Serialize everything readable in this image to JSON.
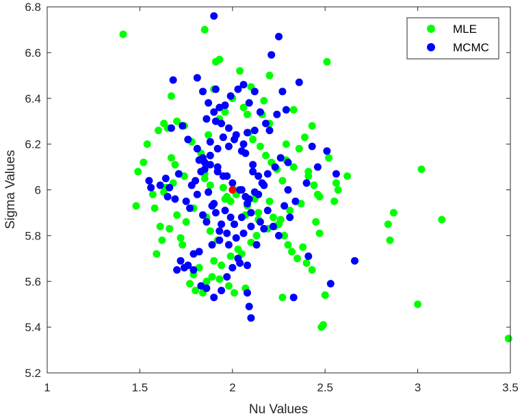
{
  "chart_data": {
    "type": "scatter",
    "xlabel": "Nu Values",
    "ylabel": "Sigma Values",
    "xlim": [
      1,
      3.5
    ],
    "ylim": [
      5.2,
      6.8
    ],
    "xticks": [
      1,
      1.5,
      2,
      2.5,
      3,
      3.5
    ],
    "xtick_labels": [
      "1",
      "1.5",
      "2",
      "2.5",
      "3",
      "3.5"
    ],
    "yticks": [
      5.2,
      5.4,
      5.6,
      5.8,
      6.0,
      6.2,
      6.4,
      6.6,
      6.8
    ],
    "ytick_labels": [
      "5.2",
      "5.4",
      "5.6",
      "5.8",
      "6",
      "6.2",
      "6.4",
      "6.6",
      "6.8"
    ],
    "grid": false,
    "legend_position": "top-right",
    "colors": {
      "mle": "#00ff00",
      "mcmc": "#0000ff",
      "true": "#ff0000"
    },
    "series": [
      {
        "name": "MLE",
        "color": "#00ff00",
        "x": [
          1.41,
          1.85,
          1.93,
          1.91,
          2.04,
          2.51,
          2.1,
          2.16,
          1.67,
          1.63,
          1.65,
          1.6,
          1.7,
          1.74,
          1.76,
          1.81,
          1.78,
          1.54,
          1.52,
          1.49,
          1.48,
          1.57,
          1.59,
          1.62,
          1.66,
          1.7,
          1.73,
          1.75,
          1.68,
          1.85,
          1.88,
          1.95,
          1.97,
          1.99,
          2.02,
          2.05,
          2.08,
          2.12,
          2.14,
          2.2,
          2.22,
          2.25,
          2.28,
          2.3,
          2.32,
          2.35,
          2.38,
          2.4,
          2.43,
          2.45,
          2.47,
          2.5,
          2.55,
          2.57,
          2.62,
          2.05,
          1.9,
          1.82,
          1.79,
          1.86,
          1.98,
          2.01,
          2.07,
          1.72,
          1.58,
          1.61,
          1.63,
          1.67,
          1.69,
          1.71,
          1.83,
          1.87,
          1.93,
          1.96,
          2.06,
          2.09,
          2.11,
          2.15,
          2.18,
          2.21,
          2.24,
          2.27,
          2.29,
          2.33,
          2.36,
          2.39,
          2.41,
          2.44,
          2.46,
          2.49,
          2.48,
          2.47,
          2.37,
          2.31,
          2.26,
          2.23,
          2.19,
          2.13,
          2.1,
          2.03,
          1.99,
          1.94,
          1.89,
          1.84,
          1.8,
          1.77,
          1.64,
          1.85,
          1.86,
          2.84,
          2.85,
          2.87,
          3.13,
          3.0,
          3.49,
          3.02,
          2.41,
          2.29,
          2.2,
          2.08,
          2.0,
          1.9,
          2.2,
          2.17,
          2.33,
          2.43,
          2.52,
          2.56,
          2.01,
          1.96,
          2.14,
          2.07,
          1.88,
          1.92,
          1.79,
          1.74,
          1.93,
          2.27
        ],
        "y": [
          6.68,
          6.7,
          6.57,
          6.56,
          6.52,
          6.56,
          6.45,
          6.33,
          6.41,
          6.29,
          6.27,
          6.26,
          6.3,
          6.28,
          6.22,
          6.18,
          6.21,
          6.2,
          6.12,
          6.08,
          5.93,
          5.98,
          5.72,
          5.78,
          5.83,
          5.89,
          5.76,
          5.86,
          6.03,
          6.05,
          6.02,
          6.01,
          5.97,
          5.95,
          5.98,
          6.0,
          5.93,
          5.96,
          5.9,
          5.95,
          5.88,
          5.85,
          5.8,
          5.76,
          5.73,
          5.7,
          5.75,
          5.68,
          5.65,
          5.86,
          5.81,
          5.54,
          5.95,
          6.0,
          6.06,
          5.72,
          5.69,
          5.66,
          5.63,
          5.6,
          5.58,
          5.55,
          5.57,
          5.79,
          5.92,
          5.84,
          5.99,
          6.14,
          6.11,
          6.07,
          6.16,
          6.24,
          6.31,
          6.34,
          6.36,
          6.25,
          6.22,
          6.19,
          6.15,
          6.12,
          6.09,
          6.04,
          6.13,
          6.1,
          6.18,
          6.23,
          6.08,
          6.02,
          5.98,
          5.41,
          5.4,
          5.97,
          5.94,
          5.91,
          5.87,
          5.84,
          5.83,
          5.8,
          5.77,
          5.74,
          5.71,
          5.67,
          5.62,
          5.55,
          5.56,
          5.59,
          6.01,
          6.07,
          5.88,
          5.85,
          5.78,
          5.9,
          5.87,
          5.5,
          5.35,
          6.09,
          6.06,
          6.2,
          6.29,
          6.33,
          6.4,
          6.44,
          6.5,
          6.39,
          6.35,
          6.28,
          6.14,
          6.03,
          6.0,
          5.96,
          5.87,
          5.89,
          5.82,
          5.78,
          5.92,
          6.06,
          5.61,
          5.53
        ],
        "size": 11
      },
      {
        "name": "MCMC",
        "color": "#0000ff",
        "x": [
          1.9,
          2.25,
          2.21,
          1.68,
          1.81,
          1.84,
          1.87,
          1.91,
          1.93,
          1.96,
          1.99,
          2.03,
          2.06,
          2.09,
          2.12,
          2.15,
          2.18,
          2.2,
          2.24,
          2.27,
          2.29,
          2.36,
          2.43,
          2.46,
          2.51,
          2.56,
          2.66,
          2.53,
          2.41,
          2.33,
          2.31,
          2.25,
          2.22,
          2.17,
          2.13,
          2.1,
          2.08,
          2.04,
          2.0,
          1.97,
          1.94,
          1.9,
          1.86,
          1.83,
          1.79,
          1.76,
          1.72,
          1.66,
          1.64,
          1.61,
          1.56,
          1.55,
          1.85,
          1.82,
          1.88,
          1.92,
          1.95,
          1.98,
          2.01,
          2.05,
          2.07,
          2.11,
          2.14,
          2.09,
          2.1,
          2.08,
          2.03,
          1.98,
          1.93,
          1.86,
          1.84,
          1.77,
          1.75,
          1.69,
          1.65,
          1.71,
          1.78,
          1.81,
          1.89,
          1.91,
          1.94,
          2.02,
          2.06,
          1.99,
          1.96,
          1.9,
          1.87,
          1.8,
          1.83,
          1.85,
          1.88,
          1.92,
          1.95,
          2.0,
          2.04,
          2.07,
          2.12,
          2.16,
          2.19,
          2.23,
          2.26,
          2.3,
          2.34,
          2.28,
          2.19,
          2.15,
          2.1,
          2.05,
          2.01,
          1.97,
          1.93,
          1.89,
          1.82,
          1.79,
          1.74,
          1.7,
          1.67,
          1.86,
          1.9,
          1.94,
          1.98,
          2.02,
          2.06,
          2.11,
          2.17,
          2.14,
          2.09,
          2.08,
          2.05,
          1.97,
          1.92,
          1.88,
          1.84,
          1.81,
          1.76,
          1.73,
          1.91,
          1.95,
          2.08,
          2.12,
          2.3,
          2.4
        ],
        "y": [
          6.76,
          6.67,
          6.59,
          6.48,
          6.49,
          6.43,
          6.38,
          6.44,
          6.36,
          6.37,
          6.41,
          6.44,
          6.46,
          6.38,
          6.43,
          6.34,
          6.29,
          6.26,
          6.33,
          6.43,
          6.35,
          6.47,
          6.19,
          6.1,
          6.17,
          6.07,
          5.69,
          5.59,
          5.71,
          5.53,
          5.88,
          5.8,
          5.84,
          5.83,
          5.76,
          5.9,
          5.55,
          5.68,
          5.66,
          5.62,
          5.56,
          5.53,
          5.57,
          5.58,
          5.65,
          5.67,
          5.69,
          6.01,
          6.05,
          6.02,
          6.01,
          6.04,
          6.09,
          6.13,
          6.21,
          6.18,
          6.23,
          6.19,
          6.22,
          6.17,
          6.16,
          6.11,
          6.06,
          5.49,
          5.44,
          5.67,
          5.7,
          5.76,
          5.82,
          5.86,
          5.89,
          5.92,
          5.95,
          5.96,
          5.97,
          6.07,
          6.02,
          5.98,
          5.93,
          5.9,
          5.85,
          5.79,
          5.81,
          5.88,
          5.91,
          5.94,
          5.99,
          6.04,
          6.08,
          6.12,
          6.15,
          6.1,
          6.06,
          6.03,
          6.0,
          5.97,
          5.99,
          6.03,
          6.07,
          6.1,
          6.14,
          6.0,
          5.95,
          5.93,
          5.91,
          5.86,
          5.84,
          5.88,
          5.85,
          5.81,
          5.78,
          5.76,
          5.73,
          5.72,
          5.66,
          5.65,
          6.27,
          6.31,
          6.34,
          6.29,
          6.27,
          6.24,
          6.2,
          6.08,
          6.02,
          5.98,
          5.96,
          5.94,
          6.0,
          6.06,
          6.08,
          6.11,
          6.14,
          6.18,
          6.22,
          6.28,
          6.3,
          6.23,
          6.25,
          6.26,
          6.12,
          6.03
        ],
        "size": 11
      },
      {
        "name": "",
        "color": "#ff0000",
        "x": [
          2.0
        ],
        "y": [
          6.0
        ],
        "size": 11
      }
    ],
    "legend": [
      "MLE",
      "MCMC"
    ]
  }
}
